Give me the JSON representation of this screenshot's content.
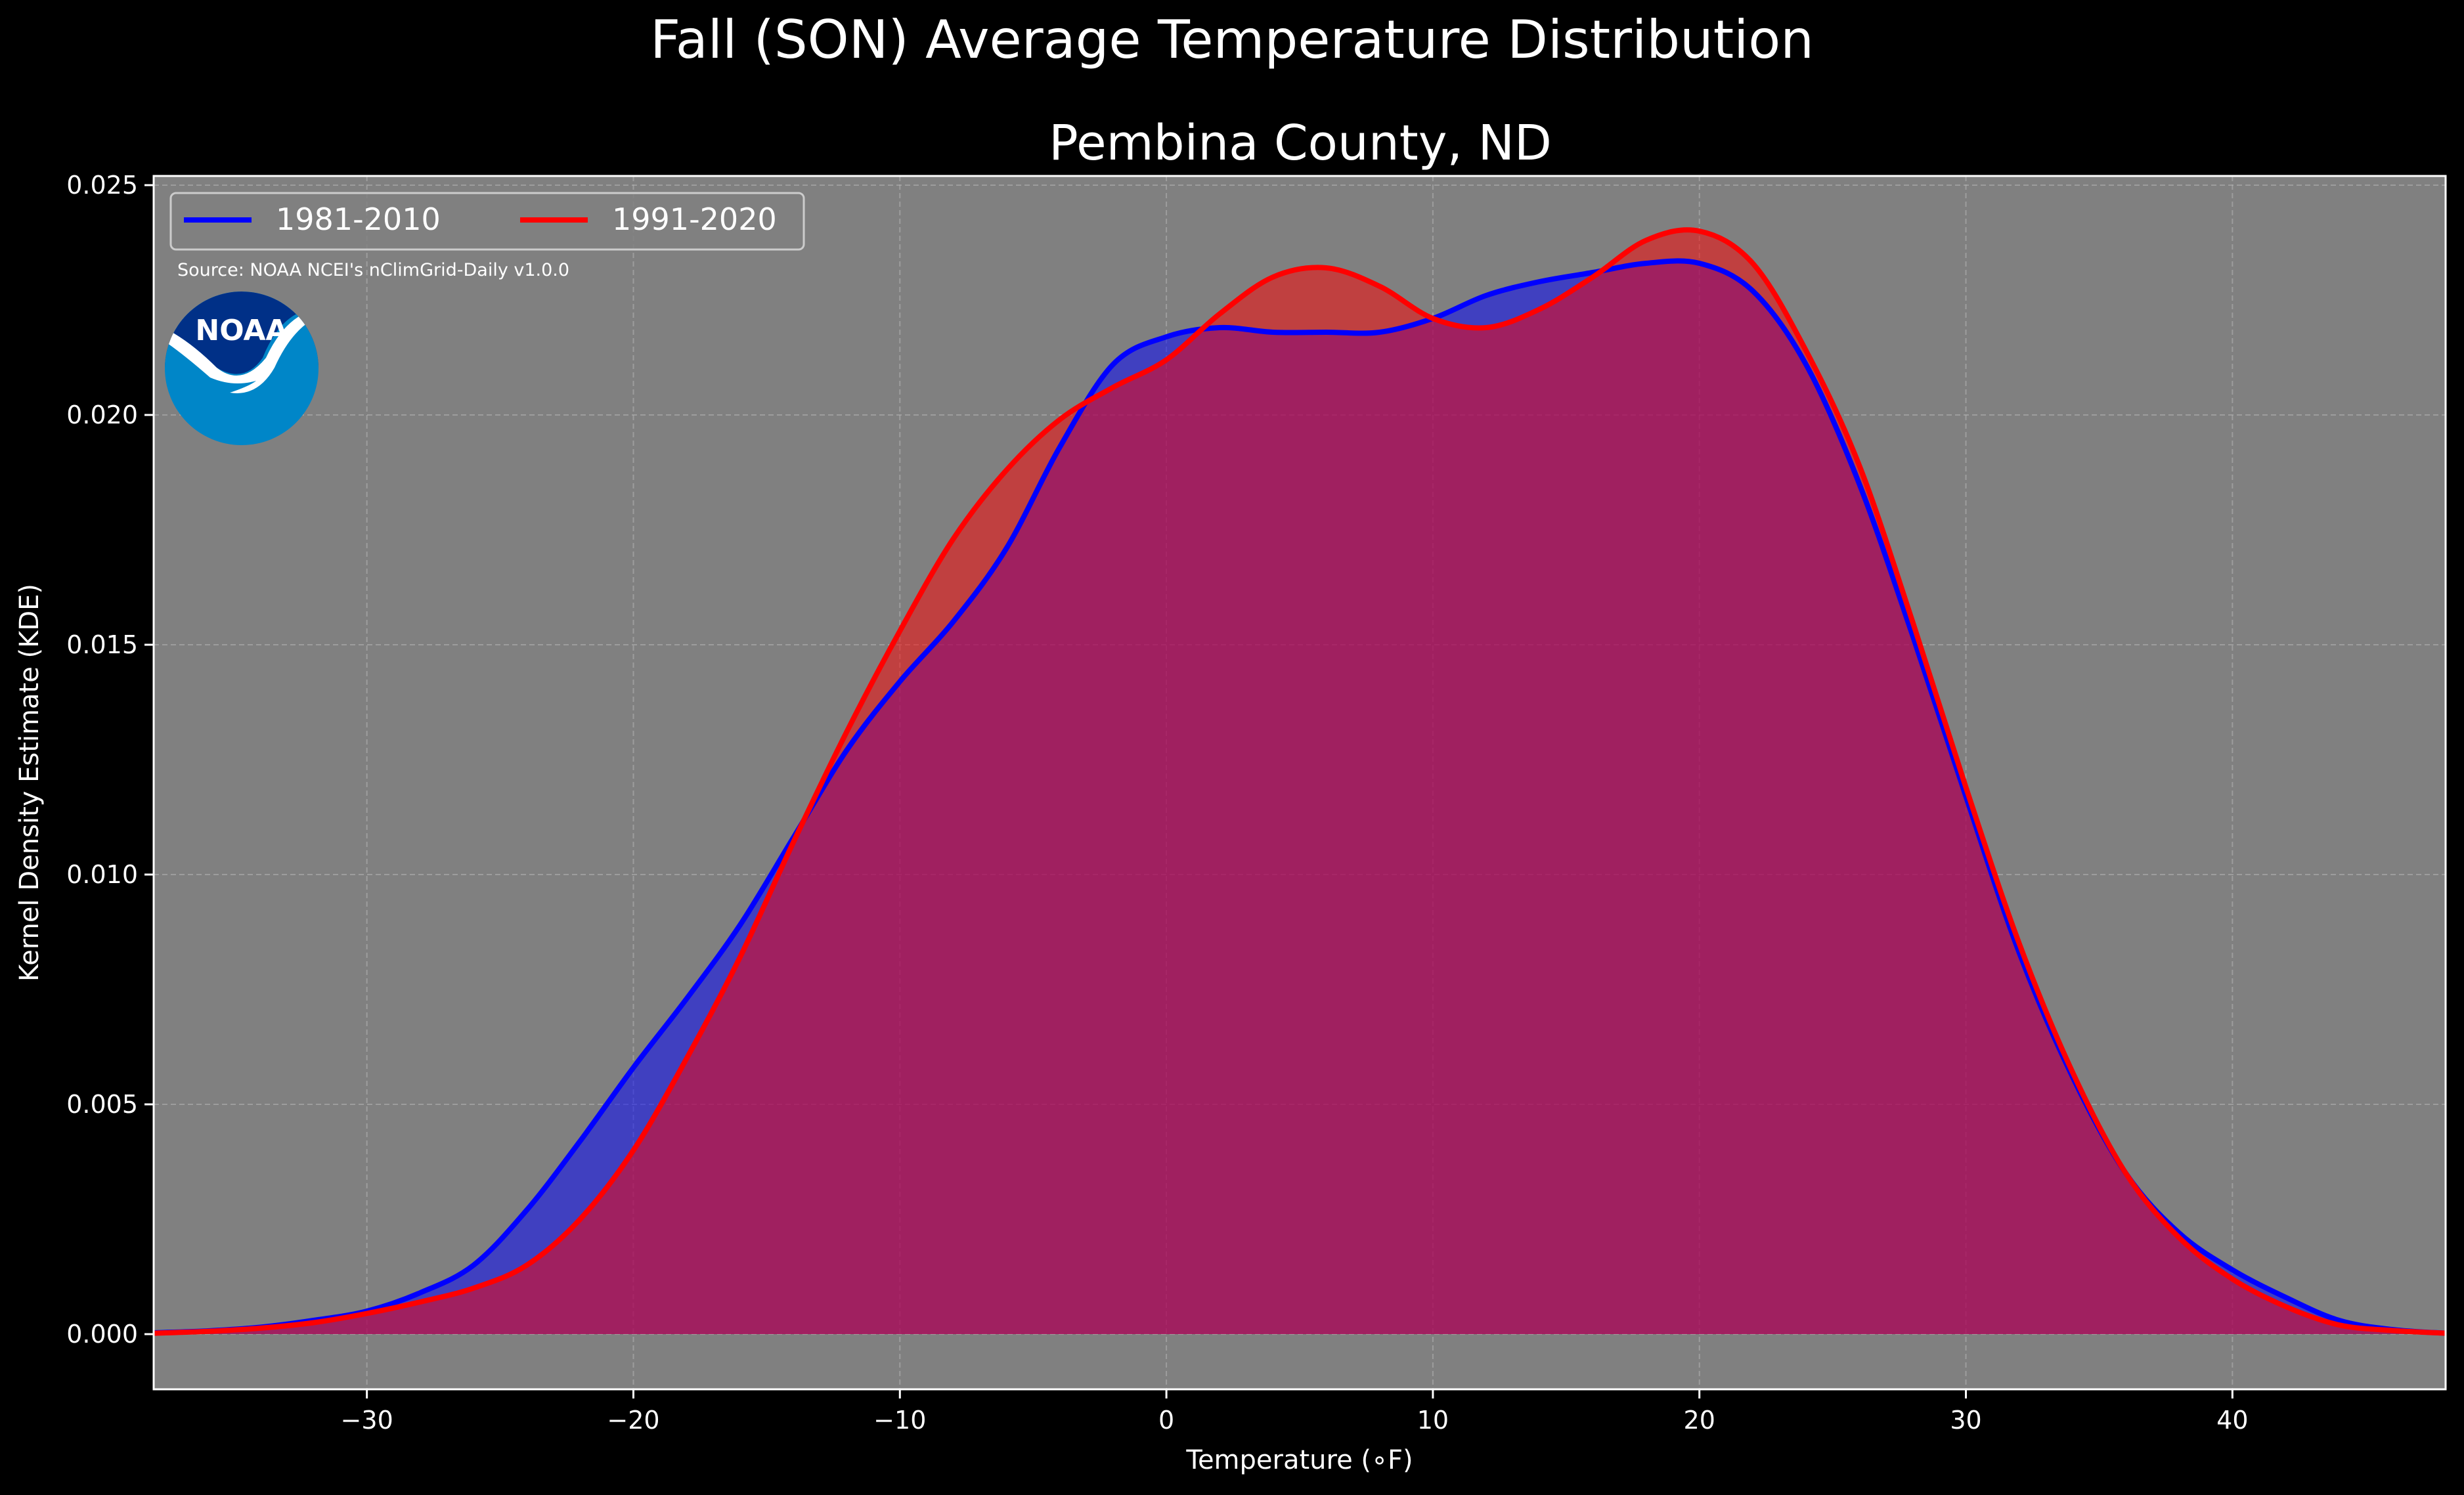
{
  "chart_data": {
    "type": "area",
    "suptitle": "Fall (SON) Average Temperature Distribution",
    "title": "Pembina County, ND",
    "xlabel": "Temperature (∘F)",
    "ylabel": "Kernel Density Estimate (KDE)",
    "source": "Source: NOAA NCEI's nClimGrid-Daily v1.0.0",
    "logo_text": "NOAA",
    "xlim": [
      -38,
      48
    ],
    "ylim": [
      -0.0012,
      0.0252
    ],
    "xticks": [
      -30,
      -20,
      -10,
      0,
      10,
      20,
      30,
      40
    ],
    "xtick_labels": [
      "−30",
      "−20",
      "−10",
      "0",
      "10",
      "20",
      "30",
      "40"
    ],
    "yticks": [
      0.0,
      0.005,
      0.01,
      0.015,
      0.02,
      0.025
    ],
    "ytick_labels": [
      "0.000",
      "0.005",
      "0.010",
      "0.015",
      "0.020",
      "0.025"
    ],
    "grid": true,
    "legend_position": "top-left",
    "colors": {
      "figure_bg": "#000000",
      "axes_bg": "#808080",
      "series_1": "#0000ff",
      "series_2": "#ff0000",
      "fill_1": "rgba(0,0,255,0.5)",
      "fill_2": "rgba(255,0,0,0.5)"
    },
    "series": [
      {
        "name": "1981-2010",
        "color": "#0000ff",
        "x": [
          -38,
          -36,
          -34,
          -32,
          -30,
          -28,
          -26,
          -24,
          -22,
          -20,
          -18,
          -16,
          -14,
          -12,
          -10,
          -8,
          -6,
          -4,
          -2,
          0,
          2,
          4,
          6,
          8,
          10,
          12,
          14,
          16,
          18,
          20,
          22,
          24,
          26,
          28,
          30,
          32,
          34,
          36,
          38,
          40,
          42,
          44,
          46,
          48
        ],
        "y": [
          3e-05,
          7e-05,
          0.00015,
          0.0003,
          0.0005,
          0.0009,
          0.0015,
          0.0027,
          0.0042,
          0.0058,
          0.0073,
          0.0089,
          0.0108,
          0.0127,
          0.0142,
          0.0155,
          0.0171,
          0.0193,
          0.0211,
          0.0217,
          0.0219,
          0.0218,
          0.0218,
          0.0218,
          0.0221,
          0.0226,
          0.0229,
          0.0231,
          0.0233,
          0.0233,
          0.0227,
          0.0211,
          0.0185,
          0.0152,
          0.0117,
          0.0083,
          0.0056,
          0.0035,
          0.0022,
          0.0014,
          0.0008,
          0.0003,
          0.0001,
          2e-05
        ]
      },
      {
        "name": "1991-2020",
        "color": "#ff0000",
        "x": [
          -38,
          -36,
          -34,
          -32,
          -30,
          -28,
          -26,
          -24,
          -22,
          -20,
          -18,
          -16,
          -14,
          -12,
          -10,
          -8,
          -6,
          -4,
          -2,
          0,
          2,
          4,
          6,
          8,
          10,
          12,
          14,
          16,
          18,
          20,
          22,
          24,
          26,
          28,
          30,
          32,
          34,
          36,
          38,
          40,
          42,
          44,
          46,
          48
        ],
        "y": [
          2e-05,
          6e-05,
          0.00013,
          0.00025,
          0.00045,
          0.0007,
          0.001,
          0.0015,
          0.0025,
          0.004,
          0.006,
          0.0082,
          0.0107,
          0.0131,
          0.0153,
          0.0173,
          0.0188,
          0.0199,
          0.0206,
          0.0212,
          0.0222,
          0.023,
          0.0232,
          0.0228,
          0.0221,
          0.0219,
          0.0223,
          0.023,
          0.0238,
          0.024,
          0.0233,
          0.0214,
          0.0189,
          0.0155,
          0.0119,
          0.0085,
          0.0057,
          0.0035,
          0.0021,
          0.0012,
          0.0006,
          0.0002,
          8e-05,
          2e-05
        ]
      }
    ]
  }
}
